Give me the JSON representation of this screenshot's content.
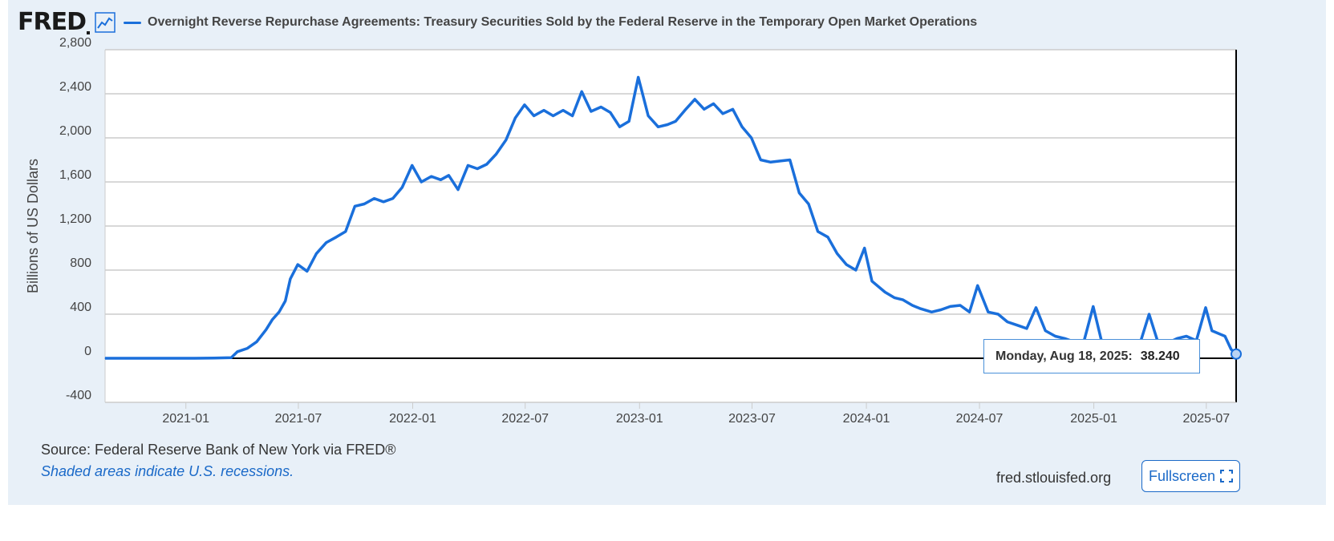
{
  "header": {
    "logo": "FRED",
    "graph_icon": "line-graph-icon",
    "title": "Overnight Reverse Repurchase Agreements: Treasury Securities Sold by the Federal Reserve in the Temporary Open Market Operations"
  },
  "colors": {
    "series": "#1a6fdb",
    "panel": "#e8f0f8",
    "grid": "#cccccc",
    "link": "#1a69c8"
  },
  "chart_data": {
    "type": "line",
    "title": "Overnight Reverse Repurchase Agreements: Treasury Securities Sold by the Federal Reserve in the Temporary Open Market Operations",
    "xlabel": "",
    "ylabel": "Billions of US Dollars",
    "ylim": [
      -400,
      2800
    ],
    "yticks": [
      -400,
      0,
      400,
      800,
      1200,
      1600,
      2000,
      2400,
      2800
    ],
    "ytick_labels": [
      "-400",
      "0",
      "400",
      "800",
      "1,200",
      "1,600",
      "2,000",
      "2,400",
      "2,800"
    ],
    "xlim": [
      "2020-08-24",
      "2025-08-18"
    ],
    "xticks": [
      "2021-01",
      "2021-07",
      "2022-01",
      "2022-07",
      "2023-01",
      "2023-07",
      "2024-01",
      "2024-07",
      "2025-01",
      "2025-07"
    ],
    "grid": true,
    "series": [
      {
        "name": "Overnight Reverse Repurchase Agreements: Treasury Securities Sold by the Federal Reserve in the Temporary Open Market Operations",
        "points": [
          [
            "2020-08-24",
            0
          ],
          [
            "2020-11-01",
            0
          ],
          [
            "2021-01-15",
            0
          ],
          [
            "2021-02-15",
            2
          ],
          [
            "2021-03-15",
            5
          ],
          [
            "2021-03-25",
            60
          ],
          [
            "2021-04-10",
            90
          ],
          [
            "2021-04-25",
            150
          ],
          [
            "2021-05-10",
            260
          ],
          [
            "2021-05-20",
            350
          ],
          [
            "2021-05-31",
            420
          ],
          [
            "2021-06-10",
            520
          ],
          [
            "2021-06-18",
            720
          ],
          [
            "2021-06-30",
            850
          ],
          [
            "2021-07-15",
            790
          ],
          [
            "2021-07-30",
            950
          ],
          [
            "2021-08-15",
            1050
          ],
          [
            "2021-08-31",
            1100
          ],
          [
            "2021-09-15",
            1150
          ],
          [
            "2021-09-30",
            1380
          ],
          [
            "2021-10-15",
            1400
          ],
          [
            "2021-10-31",
            1450
          ],
          [
            "2021-11-15",
            1420
          ],
          [
            "2021-11-30",
            1450
          ],
          [
            "2021-12-15",
            1550
          ],
          [
            "2021-12-31",
            1750
          ],
          [
            "2022-01-15",
            1600
          ],
          [
            "2022-01-31",
            1650
          ],
          [
            "2022-02-15",
            1620
          ],
          [
            "2022-02-28",
            1660
          ],
          [
            "2022-03-15",
            1530
          ],
          [
            "2022-03-31",
            1750
          ],
          [
            "2022-04-15",
            1720
          ],
          [
            "2022-04-30",
            1760
          ],
          [
            "2022-05-15",
            1850
          ],
          [
            "2022-05-31",
            1980
          ],
          [
            "2022-06-15",
            2180
          ],
          [
            "2022-06-30",
            2300
          ],
          [
            "2022-07-15",
            2200
          ],
          [
            "2022-07-31",
            2250
          ],
          [
            "2022-08-15",
            2200
          ],
          [
            "2022-08-31",
            2250
          ],
          [
            "2022-09-15",
            2200
          ],
          [
            "2022-09-30",
            2420
          ],
          [
            "2022-10-15",
            2240
          ],
          [
            "2022-10-31",
            2280
          ],
          [
            "2022-11-15",
            2230
          ],
          [
            "2022-11-30",
            2100
          ],
          [
            "2022-12-15",
            2150
          ],
          [
            "2022-12-30",
            2550
          ],
          [
            "2023-01-15",
            2200
          ],
          [
            "2023-01-31",
            2100
          ],
          [
            "2023-02-15",
            2120
          ],
          [
            "2023-02-28",
            2150
          ],
          [
            "2023-03-15",
            2250
          ],
          [
            "2023-03-31",
            2350
          ],
          [
            "2023-04-15",
            2260
          ],
          [
            "2023-04-30",
            2310
          ],
          [
            "2023-05-15",
            2220
          ],
          [
            "2023-05-31",
            2260
          ],
          [
            "2023-06-15",
            2100
          ],
          [
            "2023-06-30",
            2000
          ],
          [
            "2023-07-15",
            1800
          ],
          [
            "2023-07-31",
            1780
          ],
          [
            "2023-08-15",
            1790
          ],
          [
            "2023-08-31",
            1800
          ],
          [
            "2023-09-15",
            1500
          ],
          [
            "2023-09-30",
            1400
          ],
          [
            "2023-10-15",
            1150
          ],
          [
            "2023-10-31",
            1100
          ],
          [
            "2023-11-15",
            950
          ],
          [
            "2023-11-30",
            850
          ],
          [
            "2023-12-15",
            800
          ],
          [
            "2023-12-29",
            1000
          ],
          [
            "2024-01-10",
            700
          ],
          [
            "2024-01-31",
            600
          ],
          [
            "2024-02-15",
            550
          ],
          [
            "2024-02-29",
            530
          ],
          [
            "2024-03-15",
            480
          ],
          [
            "2024-03-28",
            450
          ],
          [
            "2024-04-15",
            420
          ],
          [
            "2024-04-30",
            440
          ],
          [
            "2024-05-15",
            470
          ],
          [
            "2024-05-31",
            480
          ],
          [
            "2024-06-15",
            420
          ],
          [
            "2024-06-28",
            660
          ],
          [
            "2024-07-15",
            420
          ],
          [
            "2024-07-31",
            400
          ],
          [
            "2024-08-15",
            330
          ],
          [
            "2024-08-31",
            300
          ],
          [
            "2024-09-15",
            270
          ],
          [
            "2024-09-30",
            460
          ],
          [
            "2024-10-15",
            250
          ],
          [
            "2024-10-31",
            200
          ],
          [
            "2024-11-15",
            180
          ],
          [
            "2024-11-30",
            150
          ],
          [
            "2024-12-15",
            130
          ],
          [
            "2024-12-31",
            470
          ],
          [
            "2025-01-15",
            120
          ],
          [
            "2025-01-31",
            100
          ],
          [
            "2025-02-15",
            90
          ],
          [
            "2025-02-28",
            130
          ],
          [
            "2025-03-15",
            110
          ],
          [
            "2025-03-31",
            400
          ],
          [
            "2025-04-15",
            130
          ],
          [
            "2025-04-30",
            140
          ],
          [
            "2025-05-15",
            180
          ],
          [
            "2025-05-30",
            200
          ],
          [
            "2025-06-15",
            160
          ],
          [
            "2025-06-30",
            460
          ],
          [
            "2025-07-10",
            250
          ],
          [
            "2025-07-31",
            200
          ],
          [
            "2025-08-10",
            80
          ],
          [
            "2025-08-18",
            38.24
          ]
        ]
      }
    ]
  },
  "tooltip": {
    "date": "Monday, Aug 18, 2025:",
    "value": "38.240"
  },
  "footer": {
    "source": "Source: Federal Reserve Bank of New York via FRED®",
    "recession_note": "Shaded areas indicate U.S. recessions.",
    "site": "fred.stlouisfed.org",
    "fullscreen_label": "Fullscreen",
    "fullscreen_icon": "expand-icon"
  }
}
